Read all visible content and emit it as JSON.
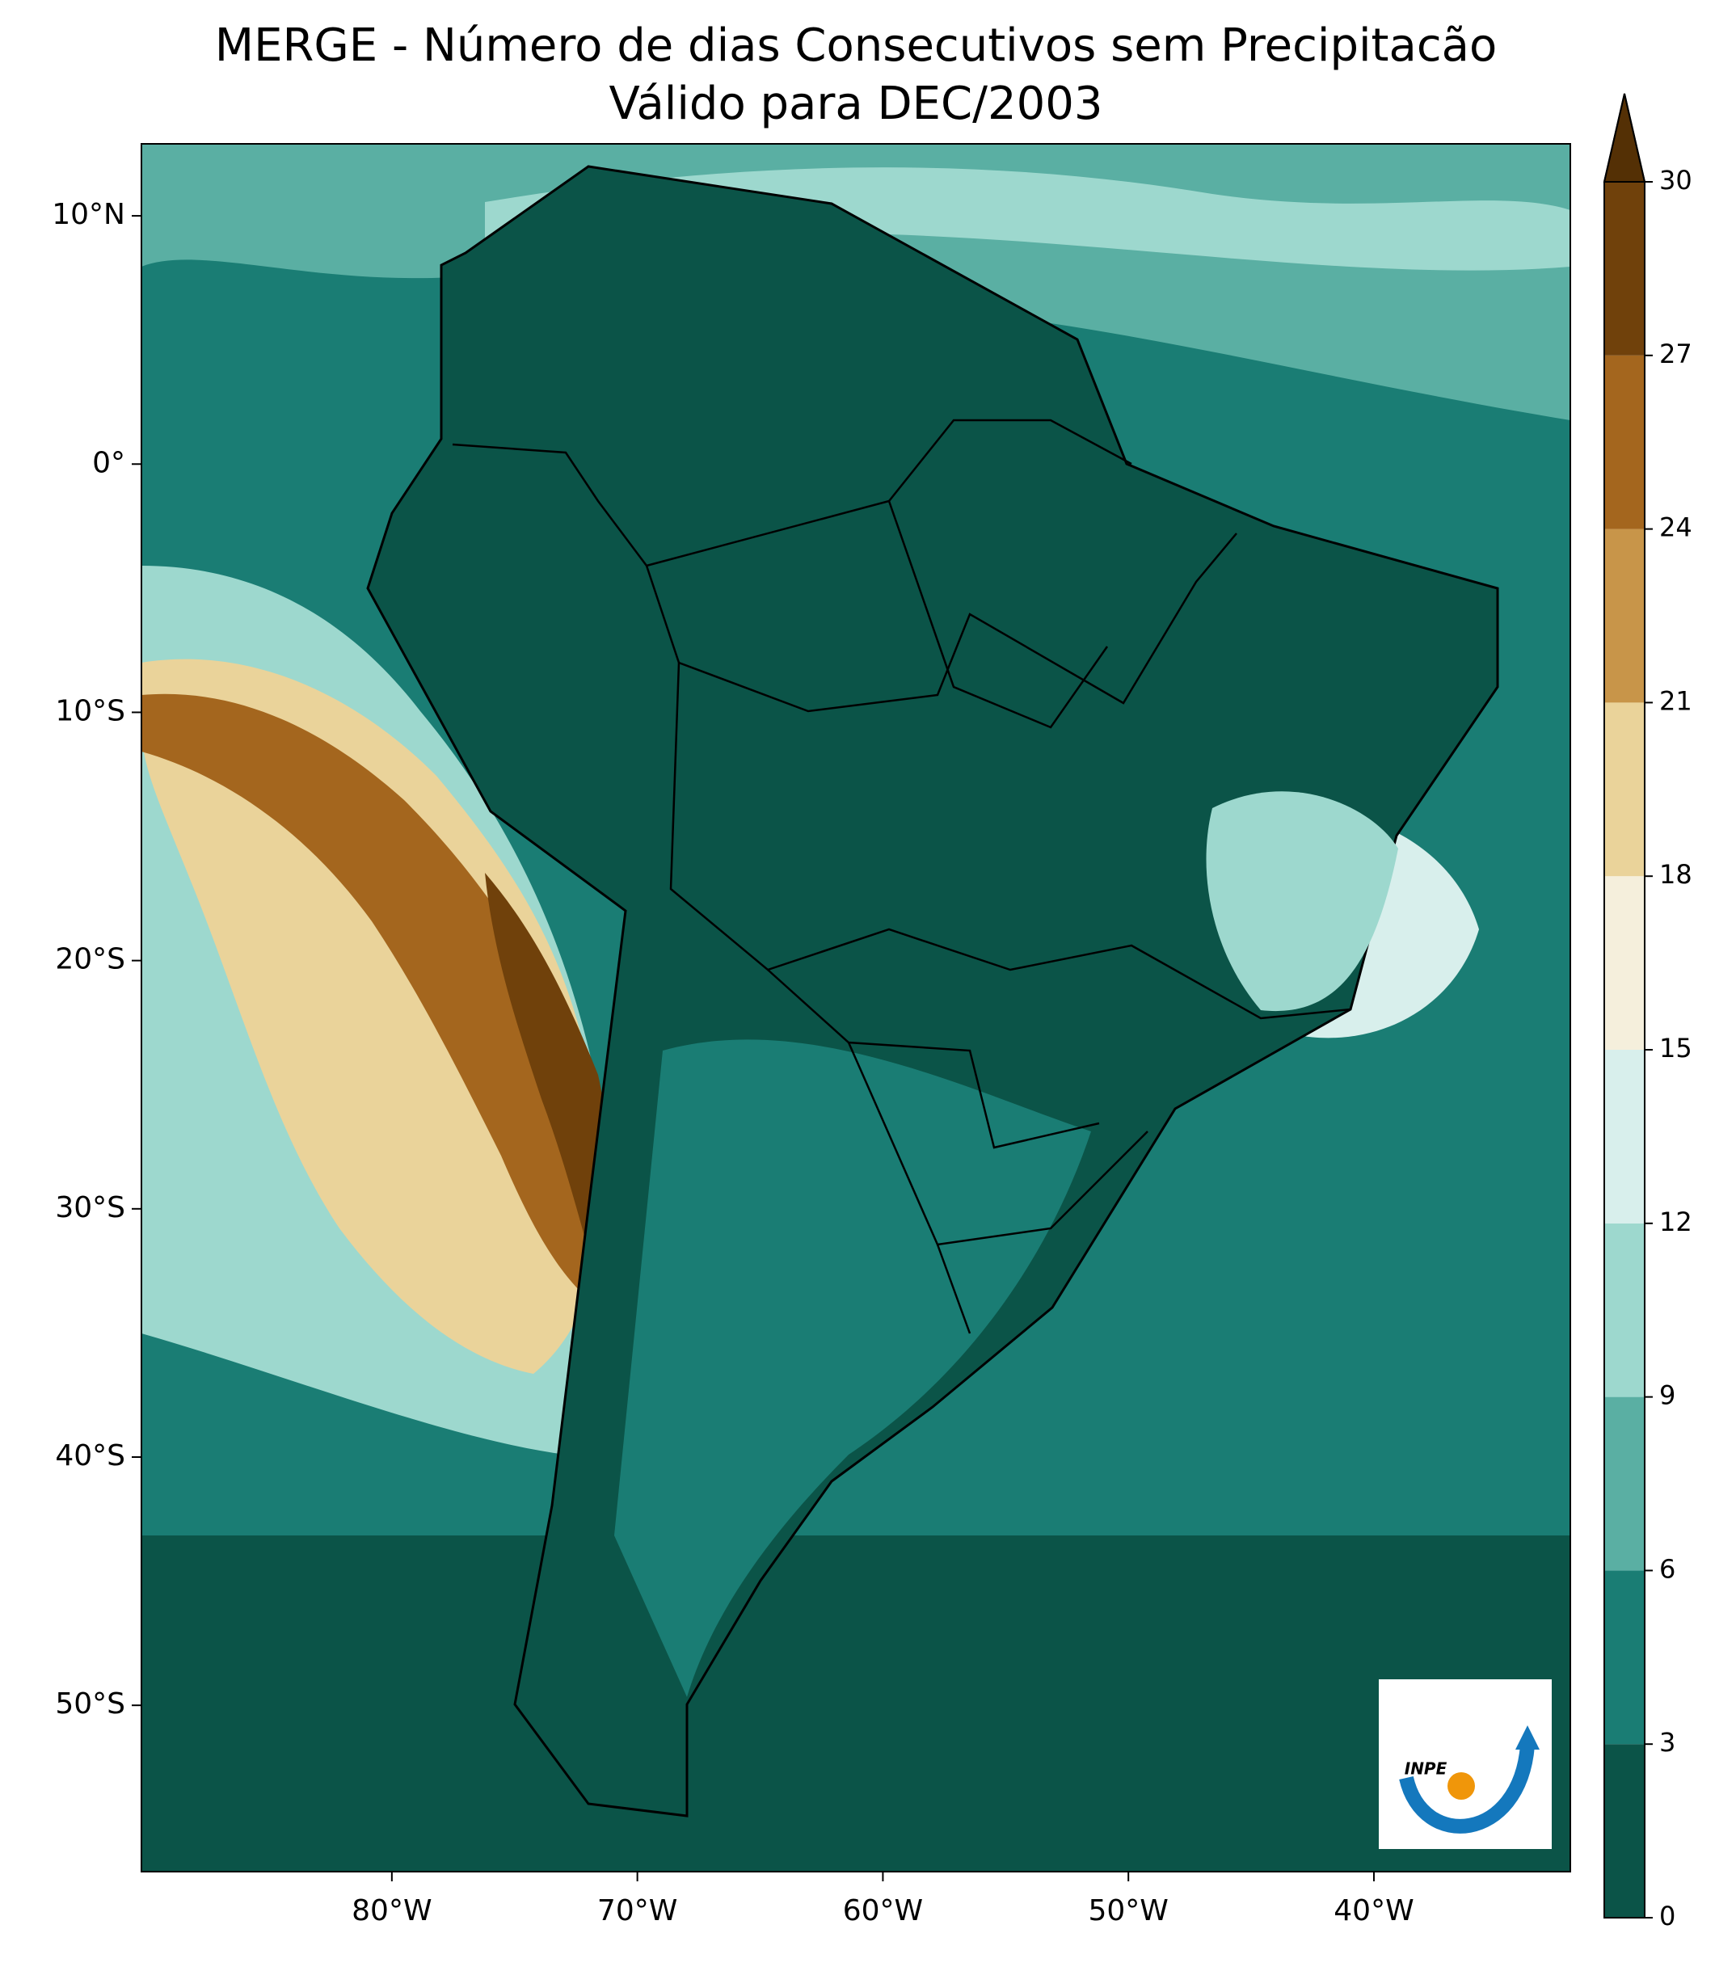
{
  "chart_data": {
    "type": "map",
    "title": "MERGE - Número de dias Consecutivos sem Precipitacão",
    "subtitle": "Válido para DEC/2003",
    "xlim": [
      -90.2,
      -32.0
    ],
    "ylim": [
      -56.7,
      12.9
    ],
    "xticks": [
      {
        "value": -80,
        "label": "80°W"
      },
      {
        "value": -70,
        "label": "70°W"
      },
      {
        "value": -60,
        "label": "60°W"
      },
      {
        "value": -50,
        "label": "50°W"
      },
      {
        "value": -40,
        "label": "40°W"
      }
    ],
    "yticks": [
      {
        "value": 10,
        "label": "10°N"
      },
      {
        "value": 0,
        "label": "0°"
      },
      {
        "value": -10,
        "label": "10°S"
      },
      {
        "value": -20,
        "label": "20°S"
      },
      {
        "value": -30,
        "label": "30°S"
      },
      {
        "value": -40,
        "label": "40°S"
      },
      {
        "value": -50,
        "label": "50°S"
      }
    ],
    "colorbar": {
      "lim": [
        0,
        30
      ],
      "ticks": [
        0,
        3,
        6,
        9,
        12,
        15,
        18,
        21,
        24,
        27,
        30
      ],
      "colors": [
        "#0b5448",
        "#1a7d74",
        "#5aafa3",
        "#9dd8ce",
        "#d8efec",
        "#f5efdc",
        "#ead39a",
        "#c89549",
        "#a4661e",
        "#70410b"
      ],
      "extend_color": "#543005"
    },
    "logo": "INPE"
  }
}
